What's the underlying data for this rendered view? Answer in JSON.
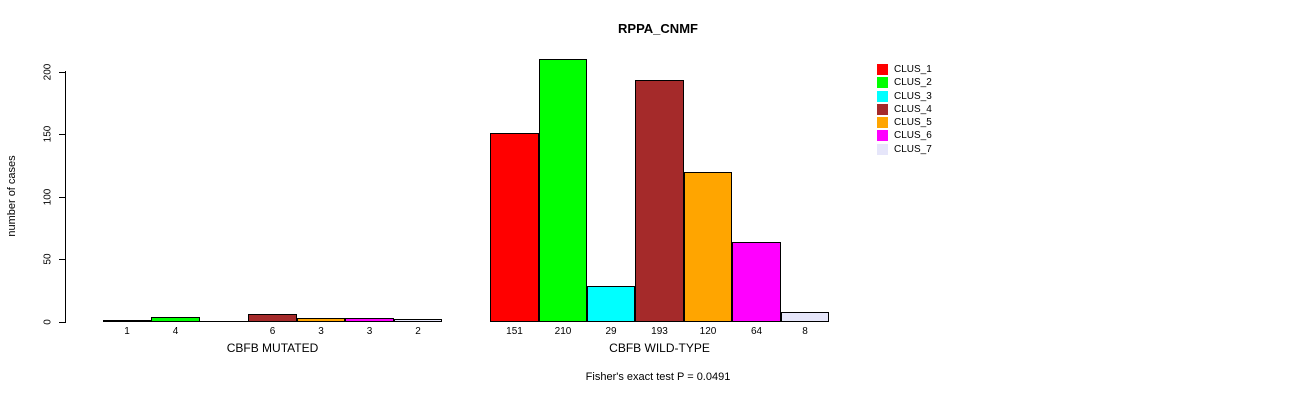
{
  "title": "RPPA_CNMF",
  "y_axis": {
    "label": "number of cases",
    "ticks": [
      "0",
      "50",
      "100",
      "150",
      "200"
    ]
  },
  "legend": {
    "items": [
      {
        "label": "CLUS_1",
        "color": "#FF0000"
      },
      {
        "label": "CLUS_2",
        "color": "#00FF00"
      },
      {
        "label": "CLUS_3",
        "color": "#00FFFF"
      },
      {
        "label": "CLUS_4",
        "color": "#A52A2A"
      },
      {
        "label": "CLUS_5",
        "color": "#FFA500"
      },
      {
        "label": "CLUS_6",
        "color": "#FF00FF"
      },
      {
        "label": "CLUS_7",
        "color": "#E6E6FA"
      }
    ]
  },
  "footer": {
    "stat_text": "Fisher's exact test P = 0.0491"
  },
  "chart_data": {
    "type": "bar",
    "title": "RPPA_CNMF",
    "xlabel": "",
    "ylabel": "number of cases",
    "ylim": [
      0,
      200
    ],
    "yticks": [
      0,
      50,
      100,
      150,
      200
    ],
    "grid": false,
    "legend_position": "right",
    "series": [
      "CLUS_1",
      "CLUS_2",
      "CLUS_3",
      "CLUS_4",
      "CLUS_5",
      "CLUS_6",
      "CLUS_7"
    ],
    "colors": [
      "#FF0000",
      "#00FF00",
      "#00FFFF",
      "#A52A2A",
      "#FFA500",
      "#FF00FF",
      "#E6E6FA"
    ],
    "groups": [
      {
        "label": "CBFB MUTATED",
        "values": [
          1,
          4,
          0,
          6,
          3,
          3,
          2
        ],
        "bar_labels": [
          "1",
          "4",
          "",
          "6",
          "3",
          "3",
          "2"
        ]
      },
      {
        "label": "CBFB WILD-TYPE",
        "values": [
          151,
          210,
          29,
          193,
          120,
          64,
          8
        ],
        "bar_labels": [
          "151",
          "210",
          "29",
          "193",
          "120",
          "64",
          "8"
        ]
      }
    ],
    "annotation": "Fisher's exact test P = 0.0491"
  }
}
